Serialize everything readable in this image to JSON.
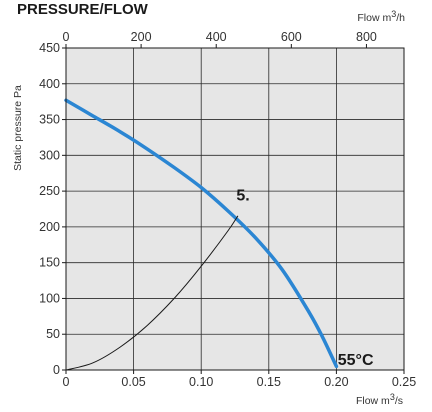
{
  "chart_data": {
    "type": "line",
    "title": "PRESSURE/FLOW",
    "xlabel_bottom": {
      "text": "Flow m",
      "sup": "3",
      "tail": "/s"
    },
    "xlabel_top": {
      "text": "Flow m",
      "sup": "3",
      "tail": "/h"
    },
    "ylabel": "Static pressure Pa",
    "xlim": [
      0,
      0.25
    ],
    "ylim": [
      0,
      450
    ],
    "x_ticks": [
      0,
      0.05,
      0.1,
      0.15,
      0.2,
      0.25
    ],
    "x_tick_labels": [
      "0",
      "0.05",
      "0.10",
      "0.15",
      "0.20",
      "0.25"
    ],
    "y_ticks": [
      0,
      50,
      100,
      150,
      200,
      250,
      300,
      350,
      400,
      450
    ],
    "y_tick_labels": [
      "0",
      "50",
      "100",
      "150",
      "200",
      "250",
      "300",
      "350",
      "400",
      "450"
    ],
    "x_top_ticks": [
      0,
      200,
      400,
      600,
      800
    ],
    "x_top_tick_labels": [
      "0",
      "200",
      "400",
      "600",
      "800"
    ],
    "grid": true,
    "background_color": "#e6e6e6",
    "series": [
      {
        "color": "#2b86d3",
        "x": [
          0,
          0.02,
          0.04,
          0.06,
          0.08,
          0.1,
          0.12,
          0.14,
          0.16,
          0.18,
          0.19,
          0.2
        ],
        "y": [
          377,
          355,
          333,
          309,
          283,
          255,
          222,
          185,
          140,
          80,
          45,
          5
        ]
      },
      {
        "color": "#1a1a1a",
        "x": [
          0,
          0.02,
          0.04,
          0.06,
          0.08,
          0.1,
          0.12,
          0.127
        ],
        "y": [
          0,
          10,
          32,
          62,
          100,
          145,
          195,
          215
        ]
      }
    ],
    "annotations": [
      {
        "text": "5.",
        "x": 0.126,
        "y": 230
      },
      {
        "text": "55°C",
        "x": 0.201,
        "y": 7
      }
    ]
  }
}
